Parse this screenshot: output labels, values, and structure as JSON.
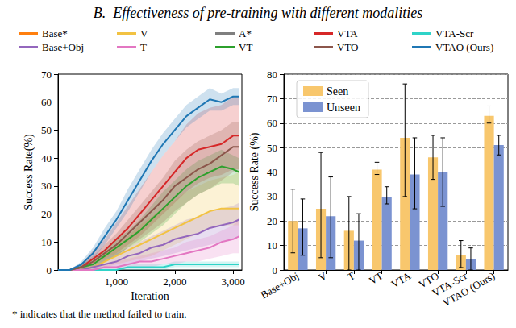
{
  "heading": "B.  Effectiveness of pre-training with different modalities",
  "footnote": "* indicates that the method failed to train.",
  "chart_data": [
    {
      "type": "line",
      "x_label": "Iteration",
      "y_label": "Success Rate(%)",
      "x": [
        0,
        200,
        400,
        600,
        800,
        1000,
        1200,
        1400,
        1600,
        1800,
        2000,
        2200,
        2400,
        2600,
        2800,
        3000,
        3100
      ],
      "xlim": [
        0,
        3150
      ],
      "xticks": [
        1000,
        2000,
        3000
      ],
      "ylim": [
        0,
        70
      ],
      "yticks": [
        0,
        10,
        20,
        30,
        40,
        50,
        60,
        70
      ],
      "grid": false,
      "legend": "top",
      "series": [
        {
          "name": "Base*",
          "color": "#ff7f0e",
          "values": [
            null,
            null,
            null,
            null,
            null,
            null,
            null,
            null,
            null,
            null,
            null,
            null,
            null,
            null,
            null,
            null,
            null
          ]
        },
        {
          "name": "V",
          "color": "#f2c242",
          "values": [
            0,
            0,
            0,
            1,
            3,
            5,
            7,
            9,
            11,
            13,
            15,
            17,
            19,
            21,
            22,
            22,
            22
          ],
          "lower": [
            0,
            0,
            0,
            0,
            1,
            2,
            3,
            4,
            5,
            7,
            9,
            11,
            13,
            15,
            16,
            16,
            16
          ],
          "upper": [
            0,
            0,
            1,
            3,
            6,
            9,
            12,
            16,
            19,
            22,
            25,
            28,
            30,
            32,
            33,
            34,
            35
          ]
        },
        {
          "name": "A*",
          "color": "#7f7f7f",
          "values": [
            null,
            null,
            null,
            null,
            null,
            null,
            null,
            null,
            null,
            null,
            null,
            null,
            null,
            null,
            null,
            null,
            null
          ]
        },
        {
          "name": "VTA",
          "color": "#d62728",
          "values": [
            0,
            0,
            1,
            4,
            7,
            11,
            15,
            20,
            25,
            30,
            35,
            40,
            43,
            44,
            45,
            48,
            48
          ],
          "lower": [
            0,
            0,
            0,
            2,
            4,
            6,
            9,
            12,
            16,
            20,
            24,
            28,
            31,
            33,
            34,
            36,
            36
          ],
          "upper": [
            0,
            0,
            2,
            7,
            11,
            17,
            23,
            29,
            35,
            41,
            46,
            52,
            56,
            58,
            59,
            62,
            62
          ]
        },
        {
          "name": "VTA-Scr",
          "color": "#2fd3c8",
          "values": [
            0,
            0,
            0,
            0,
            0,
            0,
            1,
            1,
            1,
            1,
            2,
            2,
            2,
            2,
            2,
            2,
            2
          ],
          "lower": [
            0,
            0,
            0,
            0,
            0,
            0,
            0,
            0,
            0,
            0,
            1,
            1,
            1,
            1,
            1,
            1,
            1
          ],
          "upper": [
            0,
            0,
            0,
            1,
            1,
            1,
            2,
            2,
            2,
            2,
            3,
            3,
            3,
            3,
            3,
            3,
            3
          ]
        },
        {
          "name": "Base+Obj",
          "color": "#9467bd",
          "values": [
            0,
            0,
            0,
            1,
            2,
            3,
            5,
            6,
            8,
            9,
            11,
            12,
            13,
            15,
            16,
            17,
            18
          ],
          "lower": [
            0,
            0,
            0,
            0,
            1,
            1,
            2,
            3,
            4,
            5,
            6,
            7,
            8,
            9,
            10,
            11,
            12
          ],
          "upper": [
            0,
            0,
            1,
            2,
            4,
            6,
            8,
            10,
            12,
            14,
            16,
            18,
            19,
            21,
            22,
            23,
            24
          ]
        },
        {
          "name": "T",
          "color": "#e377c2",
          "values": [
            0,
            0,
            0,
            0,
            1,
            1,
            2,
            3,
            3,
            4,
            5,
            6,
            7,
            8,
            10,
            11,
            12
          ],
          "lower": [
            0,
            0,
            0,
            0,
            0,
            0,
            1,
            1,
            1,
            2,
            2,
            3,
            3,
            4,
            5,
            6,
            6
          ],
          "upper": [
            0,
            0,
            0,
            1,
            2,
            3,
            4,
            5,
            6,
            7,
            8,
            10,
            11,
            12,
            14,
            16,
            18
          ]
        },
        {
          "name": "VT",
          "color": "#2ca02c",
          "values": [
            0,
            0,
            1,
            2,
            5,
            8,
            11,
            14,
            18,
            22,
            26,
            30,
            33,
            35,
            37,
            36,
            35
          ],
          "lower": [
            0,
            0,
            0,
            1,
            3,
            5,
            8,
            10,
            13,
            16,
            20,
            24,
            27,
            29,
            31,
            31,
            30
          ],
          "upper": [
            0,
            0,
            2,
            4,
            7,
            11,
            14,
            18,
            23,
            28,
            32,
            36,
            39,
            41,
            43,
            41,
            40
          ]
        },
        {
          "name": "VTO",
          "color": "#8c564b",
          "values": [
            0,
            0,
            1,
            3,
            6,
            9,
            13,
            17,
            21,
            25,
            30,
            33,
            36,
            38,
            41,
            44,
            44
          ],
          "lower": [
            0,
            0,
            0,
            1,
            3,
            5,
            8,
            11,
            14,
            17,
            21,
            24,
            27,
            29,
            32,
            35,
            35
          ],
          "upper": [
            0,
            0,
            2,
            5,
            9,
            13,
            18,
            23,
            28,
            33,
            39,
            43,
            46,
            48,
            50,
            53,
            53
          ]
        },
        {
          "name": "VTAO (Ours)",
          "color": "#1f77b4",
          "values": [
            0,
            0,
            2,
            6,
            12,
            18,
            25,
            32,
            39,
            45,
            50,
            55,
            58,
            61,
            60,
            62,
            62
          ],
          "lower": [
            0,
            0,
            1,
            4,
            9,
            15,
            21,
            28,
            35,
            41,
            46,
            51,
            54,
            57,
            57,
            59,
            59
          ],
          "upper": [
            0,
            0,
            3,
            8,
            15,
            21,
            29,
            36,
            43,
            49,
            54,
            59,
            62,
            65,
            63,
            65,
            65
          ]
        }
      ]
    },
    {
      "type": "bar",
      "y_label": "Success Rate (%)",
      "categories": [
        "Base+Obj",
        "V",
        "T",
        "VT",
        "VTA",
        "VTO",
        "VTA-Scr",
        "VTAO (Ours)"
      ],
      "ylim": [
        0,
        80
      ],
      "yticks": [
        0,
        10,
        20,
        30,
        40,
        50,
        60,
        70,
        80
      ],
      "grid": true,
      "legend": "upper left",
      "series": [
        {
          "name": "Seen",
          "color": "#f8c76d",
          "values": [
            20,
            25,
            16,
            41,
            54,
            46,
            6,
            63
          ],
          "error": [
            [
              7,
              33
            ],
            [
              5,
              48
            ],
            [
              0,
              30
            ],
            [
              39,
              44
            ],
            [
              30,
              76
            ],
            [
              37,
              55
            ],
            [
              1,
              12
            ],
            [
              60,
              67
            ]
          ]
        },
        {
          "name": "Unseen",
          "color": "#7b93d1",
          "values": [
            17,
            22,
            12,
            30,
            39,
            40,
            4.5,
            51
          ],
          "error": [
            [
              6,
              29
            ],
            [
              5,
              38
            ],
            [
              0,
              23
            ],
            [
              27,
              34
            ],
            [
              25,
              54
            ],
            [
              26,
              54
            ],
            [
              0,
              9
            ],
            [
              47,
              55
            ]
          ]
        }
      ]
    }
  ]
}
